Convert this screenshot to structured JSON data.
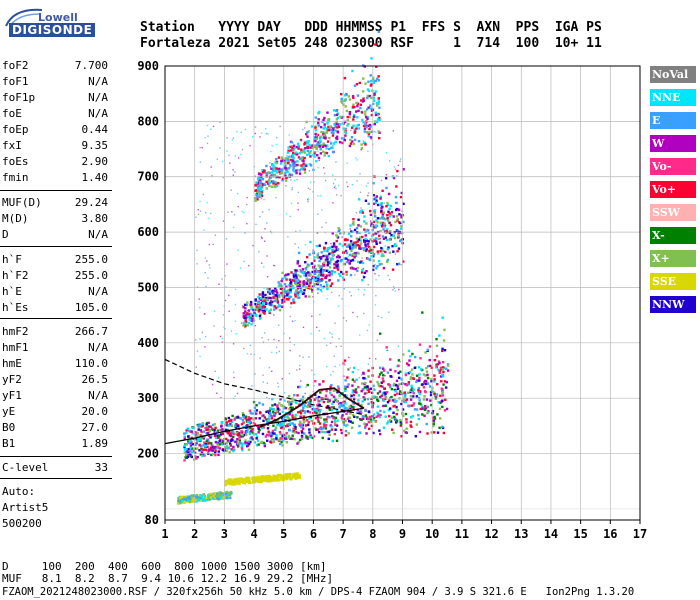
{
  "logo": {
    "top": "Lowell",
    "brand": "DIGISONDE"
  },
  "header": {
    "line1": "Station   YYYY DAY   DDD HHMMSS P1  FFS S  AXN  PPS  IGA PS",
    "line2": "Fortaleza 2021 Set05 248 023000 RSF     1  714  100  10+ 11"
  },
  "params": [
    {
      "name": "foF2",
      "value": "7.700"
    },
    {
      "name": "foF1",
      "value": "N/A"
    },
    {
      "name": "foF1p",
      "value": "N/A"
    },
    {
      "name": "foE",
      "value": "N/A"
    },
    {
      "name": "foEp",
      "value": "0.44"
    },
    {
      "name": "fxI",
      "value": "9.35"
    },
    {
      "name": "foEs",
      "value": "2.90"
    },
    {
      "name": "fmin",
      "value": "1.40"
    },
    {
      "name": "MUF(D)",
      "value": "29.24"
    },
    {
      "name": "M(D)",
      "value": "3.80"
    },
    {
      "name": "D",
      "value": "N/A"
    },
    {
      "name": "h`F",
      "value": "255.0"
    },
    {
      "name": "h`F2",
      "value": "255.0"
    },
    {
      "name": "h`E",
      "value": "N/A"
    },
    {
      "name": "h`Es",
      "value": "105.0"
    },
    {
      "name": "hmF2",
      "value": "266.7"
    },
    {
      "name": "hmF1",
      "value": "N/A"
    },
    {
      "name": "hmE",
      "value": "110.0"
    },
    {
      "name": "yF2",
      "value": "26.5"
    },
    {
      "name": "yF1",
      "value": "N/A"
    },
    {
      "name": "yE",
      "value": "20.0"
    },
    {
      "name": "B0",
      "value": "27.0"
    },
    {
      "name": "B1",
      "value": "1.89"
    },
    {
      "name": "C-level",
      "value": "33"
    }
  ],
  "auto": {
    "l1": "Auto:",
    "l2": "Artist5",
    "l3": "500200"
  },
  "legend": [
    {
      "label": "NoVal",
      "color": "#808080"
    },
    {
      "label": "NNE",
      "color": "#00e5ff"
    },
    {
      "label": "E",
      "color": "#3aa0ff"
    },
    {
      "label": "W",
      "color": "#b000c0"
    },
    {
      "label": "Vo-",
      "color": "#ff2a8a"
    },
    {
      "label": "Vo+",
      "color": "#ff0033"
    },
    {
      "label": "SSW",
      "color": "#ffb0b0"
    },
    {
      "label": "X-",
      "color": "#008000"
    },
    {
      "label": "X+",
      "color": "#80c050"
    },
    {
      "label": "SSE",
      "color": "#d8d800"
    },
    {
      "label": "NNW",
      "color": "#2000d0"
    }
  ],
  "bottom": {
    "d_row": "D     100  200  400  600  800 1000 1500 3000 [km]",
    "muf_row": "MUF   8.1  8.2  8.7  9.4 10.6 12.2 16.9 29.2 [MHz]",
    "footer": "FZAOM_2021248023000.RSF / 320fx256h 50 kHz 5.0 km / DPS-4 FZAOM 904 / 3.9 S 321.6 E   Ion2Png 1.3.20"
  },
  "chart_data": {
    "type": "scatter",
    "xlim": [
      1,
      17
    ],
    "ylim": [
      80,
      900
    ],
    "xticks": [
      1,
      2,
      3,
      4,
      5,
      6,
      7,
      8,
      9,
      10,
      11,
      12,
      13,
      14,
      15,
      16,
      17
    ],
    "yticks": [
      80,
      200,
      300,
      400,
      500,
      600,
      700,
      800,
      900
    ],
    "grid": true,
    "traces": [
      {
        "name": "Es",
        "x": [
          1.4,
          3.2
        ],
        "y": [
          118,
          128
        ],
        "colors": [
          "#d8d800",
          "#3aa0ff",
          "#00e5ff",
          "#80c050"
        ]
      },
      {
        "name": "Es-multi",
        "x": [
          3.0,
          5.5
        ],
        "y": [
          150,
          162
        ],
        "colors": [
          "#d8d800",
          "#d8d800"
        ]
      },
      {
        "name": "F-trace",
        "x": [
          1.6,
          10.5
        ],
        "y": [
          218,
          300
        ],
        "colors": [
          "#ff2a8a",
          "#ff0033",
          "#b000c0",
          "#3aa0ff",
          "#008000",
          "#80c050",
          "#00e5ff",
          "#2000d0"
        ]
      },
      {
        "name": "F-2hop",
        "x": [
          3.6,
          9.0
        ],
        "y": [
          450,
          600
        ],
        "colors": [
          "#b000c0",
          "#2000d0",
          "#3aa0ff",
          "#00e5ff",
          "#80c050",
          "#ff0033"
        ]
      },
      {
        "name": "F-3hop",
        "x": [
          4.0,
          8.2
        ],
        "y": [
          680,
          820
        ],
        "colors": [
          "#00e5ff",
          "#3aa0ff",
          "#b000c0",
          "#ff0033",
          "#80c050"
        ]
      }
    ],
    "profile_solid": {
      "x": [
        1,
        2,
        3,
        4,
        5,
        6,
        7,
        7.7
      ],
      "y": [
        218,
        228,
        240,
        250,
        258,
        268,
        276,
        282
      ]
    },
    "profile_dashed": {
      "x": [
        1,
        2,
        3,
        4,
        5,
        6,
        7,
        7.7
      ],
      "y": [
        370,
        345,
        326,
        315,
        302,
        288,
        278,
        270
      ]
    },
    "trace_line": {
      "x": [
        4.2,
        4.8,
        5.5,
        6.2,
        6.7,
        7.2,
        7.7
      ],
      "y": [
        248,
        262,
        285,
        315,
        318,
        298,
        282
      ]
    }
  }
}
